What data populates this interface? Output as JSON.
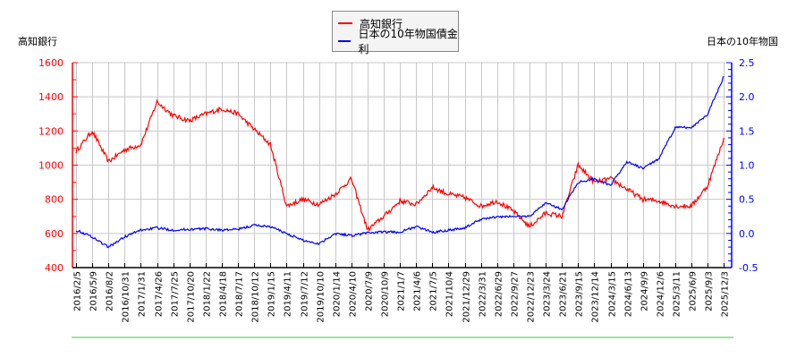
{
  "legend": {
    "series1": "高知銀行",
    "series2": "日本の10年物国債金利"
  },
  "axes": {
    "left_label": "高知銀行",
    "right_label": "日本の10年物国"
  },
  "colors": {
    "series1": "#ff0000",
    "series2": "#0000ff",
    "grid": "#c8c8c8",
    "baseline": "#33cc33",
    "left_axis": "#ff0000",
    "right_axis": "#0000ff"
  },
  "chart_data": {
    "type": "line",
    "title": "",
    "xlabel": "",
    "ylabel": "高知銀行",
    "ylabel_right": "日本の10年物国債金利",
    "ylim": [
      400,
      1600
    ],
    "ylim_right": [
      -0.5,
      2.5
    ],
    "yticks": [
      400,
      600,
      800,
      1000,
      1200,
      1400,
      1600
    ],
    "yticks_right": [
      "-0.5",
      "0.0",
      "0.5",
      "1.0",
      "1.5",
      "2.0",
      "2.5"
    ],
    "grid": true,
    "legend_position": "top-center",
    "x": [
      "2016/2/5",
      "2016/5/9",
      "2016/8/2",
      "2016/10/31",
      "2017/1/31",
      "2017/4/26",
      "2017/7/25",
      "2017/10/20",
      "2018/1/22",
      "2018/4/18",
      "2018/7/17",
      "2018/10/12",
      "2019/1/15",
      "2019/4/11",
      "2019/7/12",
      "2019/10/10",
      "2020/1/14",
      "2020/4/10",
      "2020/7/9",
      "2020/10/9",
      "2021/1/7",
      "2021/4/6",
      "2021/7/5",
      "2021/10/4",
      "2021/12/29",
      "2022/3/31",
      "2022/6/29",
      "2022/9/27",
      "2022/12/23",
      "2023/3/24",
      "2023/6/21",
      "2023/9/15",
      "2023/12/14",
      "2024/3/15",
      "2024/6/13",
      "2024/9/9",
      "2024/12/6",
      "2025/3/11",
      "2025/6/9",
      "2025/9/3",
      "2025/12/3"
    ],
    "series": [
      {
        "name": "高知銀行",
        "axis": "left",
        "color": "#ff0000",
        "values": [
          1080,
          1200,
          1020,
          1090,
          1120,
          1370,
          1290,
          1260,
          1300,
          1330,
          1300,
          1210,
          1120,
          760,
          800,
          770,
          830,
          920,
          620,
          700,
          790,
          770,
          870,
          830,
          810,
          760,
          790,
          730,
          640,
          720,
          700,
          1000,
          900,
          920,
          860,
          800,
          790,
          760,
          760,
          880,
          1160
        ]
      },
      {
        "name": "日本の10年物国債金利",
        "axis": "right",
        "color": "#0000ff",
        "values": [
          0.05,
          -0.05,
          -0.2,
          -0.05,
          0.05,
          0.08,
          0.05,
          0.06,
          0.07,
          0.05,
          0.06,
          0.12,
          0.1,
          0.0,
          -0.1,
          -0.15,
          0.0,
          -0.03,
          0.01,
          0.02,
          0.02,
          0.1,
          0.02,
          0.05,
          0.08,
          0.21,
          0.24,
          0.25,
          0.25,
          0.45,
          0.35,
          0.75,
          0.8,
          0.7,
          1.05,
          0.95,
          1.1,
          1.55,
          1.55,
          1.75,
          2.3
        ]
      }
    ]
  }
}
